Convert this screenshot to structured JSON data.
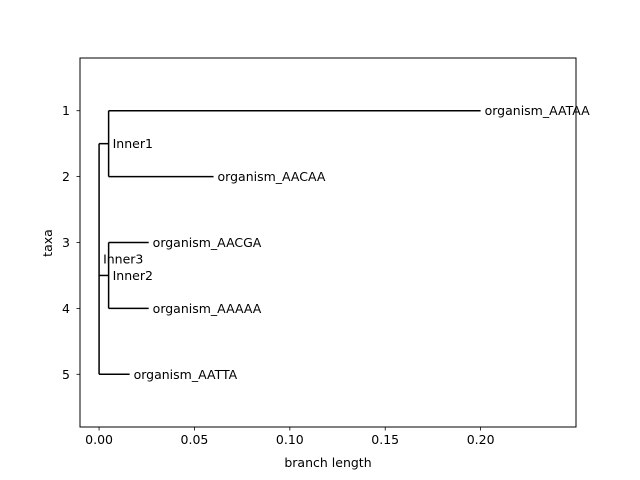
{
  "chart_data": {
    "type": "tree",
    "xlabel": "branch length",
    "ylabel": "taxa",
    "xlim": [
      -0.01,
      0.25
    ],
    "ylim": [
      5.8,
      0.2
    ],
    "xticks": [
      0.0,
      0.05,
      0.1,
      0.15,
      0.2
    ],
    "xtick_labels": [
      "0.00",
      "0.05",
      "0.10",
      "0.15",
      "0.20"
    ],
    "yticks": [
      1,
      2,
      3,
      4,
      5
    ],
    "ytick_labels": [
      "1",
      "2",
      "3",
      "4",
      "5"
    ],
    "grid": false,
    "line_color": "#000000",
    "leaves": [
      {
        "name": "organism_AATAA",
        "x": 0.2,
        "y": 1
      },
      {
        "name": "organism_AACAA",
        "x": 0.06,
        "y": 2
      },
      {
        "name": "organism_AACGA",
        "x": 0.026,
        "y": 3
      },
      {
        "name": "organism_AAAAA",
        "x": 0.026,
        "y": 4
      },
      {
        "name": "organism_AATTA",
        "x": 0.016,
        "y": 5
      }
    ],
    "internal_nodes": [
      {
        "name": "Inner3",
        "x": 0.0,
        "y": 3.5
      },
      {
        "name": "Inner1",
        "x": 0.005,
        "y": 1.5
      },
      {
        "name": "Inner2",
        "x": 0.005,
        "y": 3.5
      }
    ],
    "branches": [
      {
        "from": "Inner3",
        "to": "Inner1"
      },
      {
        "from": "Inner3",
        "to": "Inner2"
      },
      {
        "from": "Inner3",
        "to": "organism_AATTA"
      },
      {
        "from": "Inner1",
        "to": "organism_AATAA"
      },
      {
        "from": "Inner1",
        "to": "organism_AACAA"
      },
      {
        "from": "Inner2",
        "to": "organism_AACGA"
      },
      {
        "from": "Inner2",
        "to": "organism_AAAAA"
      }
    ]
  }
}
